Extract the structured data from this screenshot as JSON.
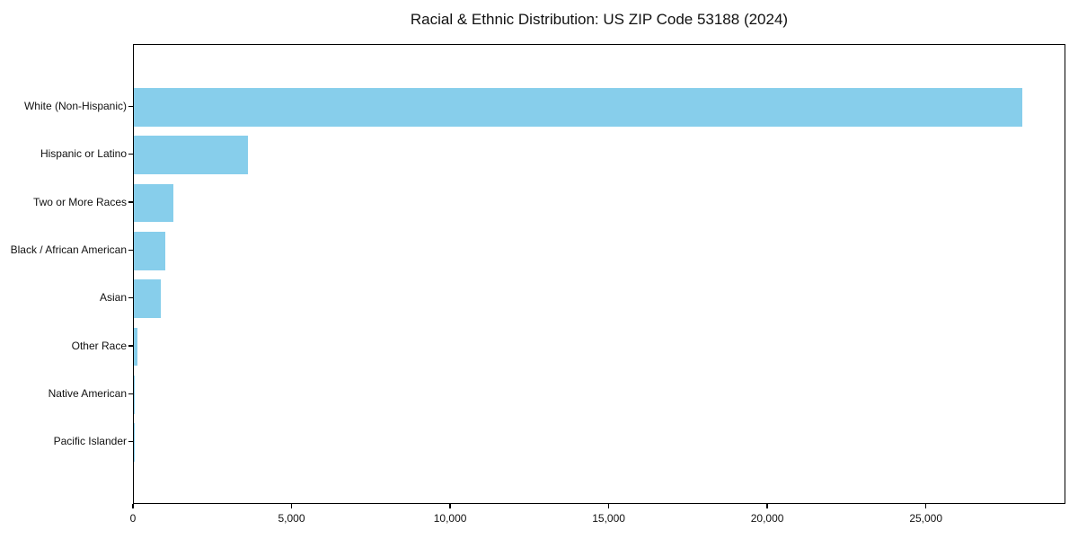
{
  "chart_data": {
    "type": "bar",
    "orientation": "horizontal",
    "title": "Racial & Ethnic Distribution: US ZIP Code 53188 (2024)",
    "categories": [
      "White (Non-Hispanic)",
      "Hispanic or Latino",
      "Two or More Races",
      "Black / African American",
      "Asian",
      "Other Race",
      "Native American",
      "Pacific Islander"
    ],
    "values": [
      28000,
      3600,
      1250,
      1000,
      850,
      110,
      25,
      5
    ],
    "xlabel": "",
    "ylabel": "",
    "xlim": [
      0,
      29400
    ],
    "x_ticks": [
      {
        "value": 0,
        "label": "0"
      },
      {
        "value": 5000,
        "label": "5,000"
      },
      {
        "value": 10000,
        "label": "10,000"
      },
      {
        "value": 15000,
        "label": "15,000"
      },
      {
        "value": 20000,
        "label": "20,000"
      },
      {
        "value": 25000,
        "label": "25,000"
      }
    ],
    "grid": false,
    "legend": null,
    "bar_color": "#87CEEB",
    "spine_color": "#000000",
    "background_color": "#ffffff"
  }
}
